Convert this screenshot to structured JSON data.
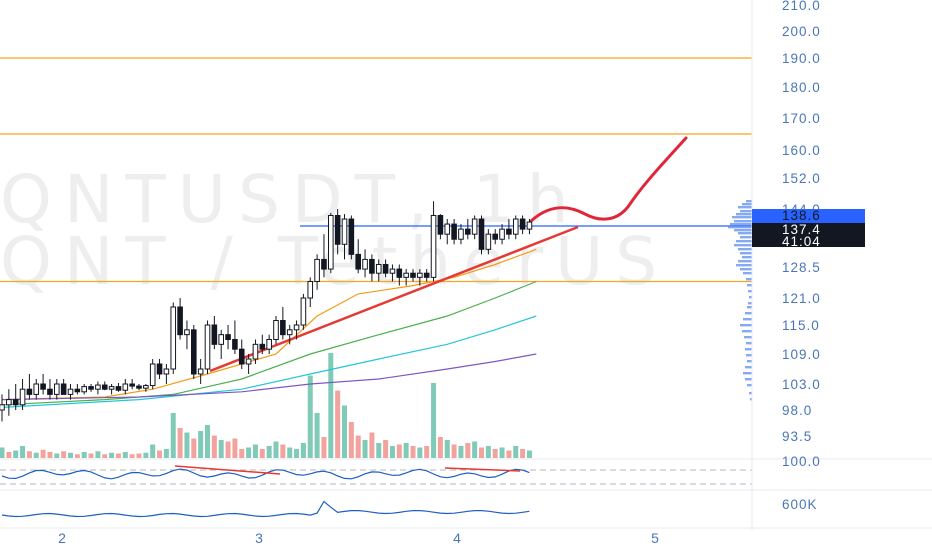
{
  "watermark": {
    "line1": "QNTUSDT, 1h",
    "line2": "QNT / TetherUS"
  },
  "colors": {
    "background": "#ffffff",
    "candle_up": "#ffffff",
    "candle_down": "#131722",
    "candle_outline": "#131722",
    "hline": "#f5a623",
    "blue_line": "#2962ff",
    "trend_line": "#e53935",
    "projection": "#e0273a",
    "ma_orange": "#f39c12",
    "ma_green": "#4caf50",
    "ma_cyan": "#26c6da",
    "ma_purple": "#7e57c2",
    "vol_up": "#7fcbb8",
    "vol_down": "#f3a39e",
    "axis_text": "#4a76b8",
    "price_tag_blue": "#2962ff",
    "price_tag_dark": "#131722",
    "profile": "#5b8def"
  },
  "chart_data": {
    "type": "candlestick",
    "symbol": "QNTUSDT",
    "interval": "1h",
    "y_ticks": [
      "210.0",
      "200.0",
      "190.0",
      "180.0",
      "170.0",
      "160.0",
      "152.0",
      "144.0",
      "128.5",
      "121.0",
      "115.0",
      "109.0",
      "103.0",
      "98.0",
      "93.5"
    ],
    "x_ticks": [
      "2",
      "3",
      "4",
      "5"
    ],
    "horizontal_levels": [
      190.0,
      165.0,
      125.0
    ],
    "resistance_level": 138.6,
    "last_price_tag": "138.6",
    "current_price_tag": "137.4",
    "countdown_tag": "41:04",
    "rsi_tick": "100.0",
    "volume_tick": "600K",
    "candles": [
      {
        "o": 98,
        "h": 101,
        "l": 96,
        "c": 99
      },
      {
        "o": 99,
        "h": 102,
        "l": 97,
        "c": 100
      },
      {
        "o": 100,
        "h": 103,
        "l": 98,
        "c": 99
      },
      {
        "o": 99,
        "h": 104,
        "l": 98,
        "c": 102
      },
      {
        "o": 102,
        "h": 105,
        "l": 100,
        "c": 101
      },
      {
        "o": 101,
        "h": 104,
        "l": 100,
        "c": 103
      },
      {
        "o": 103,
        "h": 105,
        "l": 101,
        "c": 102
      },
      {
        "o": 102,
        "h": 104,
        "l": 100,
        "c": 101
      },
      {
        "o": 101,
        "h": 104,
        "l": 100,
        "c": 103
      },
      {
        "o": 103,
        "h": 104,
        "l": 101,
        "c": 101
      },
      {
        "o": 101,
        "h": 103,
        "l": 100,
        "c": 102
      },
      {
        "o": 102,
        "h": 103,
        "l": 101,
        "c": 101.5
      },
      {
        "o": 101.5,
        "h": 103,
        "l": 101,
        "c": 102.5
      },
      {
        "o": 102.5,
        "h": 103,
        "l": 101.5,
        "c": 102
      },
      {
        "o": 102,
        "h": 103.5,
        "l": 101,
        "c": 102.8
      },
      {
        "o": 102.8,
        "h": 103.5,
        "l": 101.8,
        "c": 102
      },
      {
        "o": 102,
        "h": 103,
        "l": 101,
        "c": 102.5
      },
      {
        "o": 102.5,
        "h": 103.2,
        "l": 101.5,
        "c": 101.8
      },
      {
        "o": 101.8,
        "h": 104,
        "l": 101,
        "c": 103
      },
      {
        "o": 103,
        "h": 104,
        "l": 102,
        "c": 102.6
      },
      {
        "o": 102.6,
        "h": 103,
        "l": 101.8,
        "c": 102.2
      },
      {
        "o": 102.2,
        "h": 103,
        "l": 101.5,
        "c": 102.7
      },
      {
        "o": 102.7,
        "h": 108,
        "l": 102,
        "c": 107
      },
      {
        "o": 107,
        "h": 108,
        "l": 104,
        "c": 105
      },
      {
        "o": 105,
        "h": 107,
        "l": 103,
        "c": 106
      },
      {
        "o": 106,
        "h": 120,
        "l": 105,
        "c": 119
      },
      {
        "o": 119,
        "h": 121,
        "l": 112,
        "c": 113
      },
      {
        "o": 113,
        "h": 116,
        "l": 110,
        "c": 114
      },
      {
        "o": 114,
        "h": 115,
        "l": 104,
        "c": 105
      },
      {
        "o": 105,
        "h": 108,
        "l": 103,
        "c": 106
      },
      {
        "o": 106,
        "h": 116,
        "l": 105,
        "c": 115
      },
      {
        "o": 115,
        "h": 117,
        "l": 110,
        "c": 111
      },
      {
        "o": 111,
        "h": 114,
        "l": 108,
        "c": 113
      },
      {
        "o": 113,
        "h": 115,
        "l": 110,
        "c": 112
      },
      {
        "o": 112,
        "h": 116,
        "l": 109,
        "c": 110
      },
      {
        "o": 110,
        "h": 112,
        "l": 106,
        "c": 107
      },
      {
        "o": 107,
        "h": 109,
        "l": 105,
        "c": 108
      },
      {
        "o": 108,
        "h": 112,
        "l": 107,
        "c": 111
      },
      {
        "o": 111,
        "h": 113,
        "l": 109,
        "c": 110
      },
      {
        "o": 110,
        "h": 113,
        "l": 109,
        "c": 112
      },
      {
        "o": 112,
        "h": 117,
        "l": 111,
        "c": 116
      },
      {
        "o": 116,
        "h": 119,
        "l": 112,
        "c": 113
      },
      {
        "o": 113,
        "h": 115,
        "l": 111,
        "c": 114
      },
      {
        "o": 114,
        "h": 116,
        "l": 112,
        "c": 115
      },
      {
        "o": 115,
        "h": 122,
        "l": 114,
        "c": 121
      },
      {
        "o": 121,
        "h": 126,
        "l": 119,
        "c": 125
      },
      {
        "o": 125,
        "h": 131,
        "l": 123,
        "c": 130
      },
      {
        "o": 130,
        "h": 135,
        "l": 126,
        "c": 128
      },
      {
        "o": 128,
        "h": 141,
        "l": 127,
        "c": 139
      },
      {
        "o": 139,
        "h": 144,
        "l": 131,
        "c": 133
      },
      {
        "o": 133,
        "h": 140,
        "l": 130,
        "c": 138
      },
      {
        "o": 138,
        "h": 139,
        "l": 130,
        "c": 131
      },
      {
        "o": 131,
        "h": 134,
        "l": 127,
        "c": 128
      },
      {
        "o": 128,
        "h": 132,
        "l": 126,
        "c": 130
      },
      {
        "o": 130,
        "h": 131,
        "l": 125,
        "c": 127
      },
      {
        "o": 127,
        "h": 130,
        "l": 125,
        "c": 129
      },
      {
        "o": 129,
        "h": 130,
        "l": 126,
        "c": 127
      },
      {
        "o": 127,
        "h": 129,
        "l": 125,
        "c": 128
      },
      {
        "o": 128,
        "h": 129,
        "l": 124,
        "c": 126
      },
      {
        "o": 126,
        "h": 128,
        "l": 124,
        "c": 127
      },
      {
        "o": 127,
        "h": 128,
        "l": 125,
        "c": 126
      },
      {
        "o": 126,
        "h": 128,
        "l": 124,
        "c": 127
      },
      {
        "o": 127,
        "h": 128,
        "l": 125,
        "c": 126
      },
      {
        "o": 126,
        "h": 146,
        "l": 125,
        "c": 139
      },
      {
        "o": 139,
        "h": 140,
        "l": 134,
        "c": 135
      },
      {
        "o": 135,
        "h": 138,
        "l": 133,
        "c": 137
      },
      {
        "o": 137,
        "h": 138,
        "l": 133,
        "c": 134
      },
      {
        "o": 134,
        "h": 137,
        "l": 133,
        "c": 136
      },
      {
        "o": 136,
        "h": 138,
        "l": 134,
        "c": 135
      },
      {
        "o": 135,
        "h": 139,
        "l": 134,
        "c": 138
      },
      {
        "o": 138,
        "h": 139,
        "l": 131,
        "c": 132
      },
      {
        "o": 132,
        "h": 136,
        "l": 131,
        "c": 135
      },
      {
        "o": 135,
        "h": 136,
        "l": 133,
        "c": 134
      },
      {
        "o": 134,
        "h": 137,
        "l": 133,
        "c": 136
      },
      {
        "o": 136,
        "h": 138,
        "l": 134,
        "c": 135
      },
      {
        "o": 135,
        "h": 139,
        "l": 134,
        "c": 138
      },
      {
        "o": 138,
        "h": 139,
        "l": 135,
        "c": 136
      },
      {
        "o": 136,
        "h": 138,
        "l": 135,
        "c": 137.4
      }
    ],
    "moving_averages": [
      {
        "color_key": "ma_orange",
        "points": [
          [
            0,
            100
          ],
          [
            15,
            100.5
          ],
          [
            22,
            102
          ],
          [
            30,
            105
          ],
          [
            40,
            109
          ],
          [
            46,
            117
          ],
          [
            52,
            122
          ],
          [
            60,
            124
          ],
          [
            66,
            126
          ],
          [
            72,
            129
          ],
          [
            78,
            132
          ]
        ]
      },
      {
        "color_key": "ma_green",
        "points": [
          [
            0,
            99
          ],
          [
            15,
            100
          ],
          [
            25,
            101
          ],
          [
            35,
            104
          ],
          [
            45,
            109
          ],
          [
            55,
            113
          ],
          [
            65,
            117
          ],
          [
            72,
            121
          ],
          [
            78,
            125
          ]
        ]
      },
      {
        "color_key": "ma_cyan",
        "points": [
          [
            0,
            98.5
          ],
          [
            20,
            100
          ],
          [
            35,
            102
          ],
          [
            45,
            105
          ],
          [
            55,
            108
          ],
          [
            65,
            111
          ],
          [
            72,
            114
          ],
          [
            78,
            117
          ]
        ]
      },
      {
        "color_key": "ma_purple",
        "points": [
          [
            0,
            100
          ],
          [
            20,
            100.5
          ],
          [
            35,
            101.5
          ],
          [
            45,
            103
          ],
          [
            55,
            104
          ],
          [
            65,
            106
          ],
          [
            72,
            107.5
          ],
          [
            78,
            109
          ]
        ]
      }
    ],
    "volume": [
      14,
      8,
      10,
      16,
      9,
      7,
      11,
      8,
      6,
      9,
      7,
      5,
      8,
      6,
      9,
      5,
      7,
      6,
      8,
      5,
      6,
      7,
      18,
      10,
      12,
      60,
      40,
      34,
      26,
      36,
      44,
      30,
      24,
      22,
      26,
      12,
      14,
      18,
      12,
      16,
      22,
      18,
      14,
      12,
      20,
      110,
      60,
      28,
      140,
      90,
      70,
      48,
      30,
      24,
      34,
      20,
      24,
      16,
      18,
      20,
      16,
      14,
      16,
      100,
      28,
      24,
      18,
      16,
      20,
      22,
      14,
      16,
      12,
      14,
      10,
      16,
      12,
      10
    ],
    "volume_up": [
      1,
      0,
      1,
      1,
      0,
      1,
      0,
      0,
      1,
      0,
      1,
      0,
      1,
      0,
      1,
      0,
      1,
      0,
      1,
      0,
      0,
      1,
      1,
      0,
      1,
      1,
      0,
      1,
      0,
      1,
      1,
      0,
      1,
      0,
      0,
      0,
      1,
      1,
      0,
      1,
      1,
      0,
      1,
      1,
      1,
      1,
      1,
      0,
      1,
      0,
      1,
      0,
      0,
      1,
      0,
      1,
      0,
      1,
      0,
      1,
      0,
      1,
      0,
      1,
      0,
      1,
      0,
      1,
      0,
      1,
      0,
      1,
      0,
      1,
      0,
      1,
      0,
      1
    ]
  }
}
